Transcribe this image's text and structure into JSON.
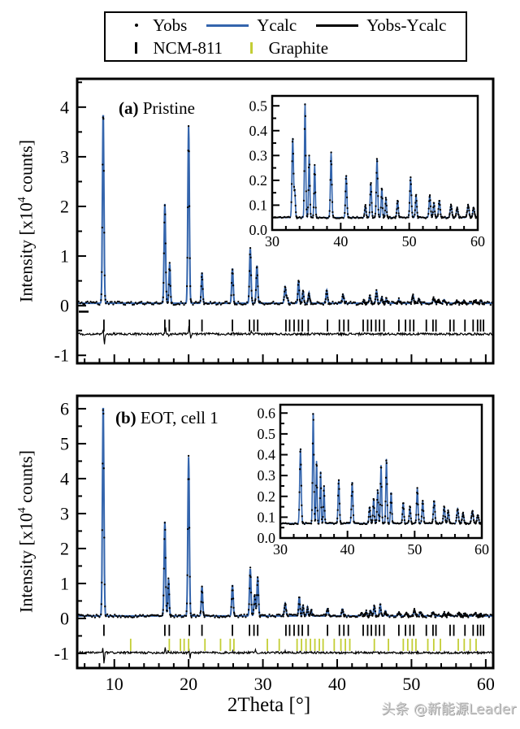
{
  "watermark": {
    "text": "头条 @新能源Leader"
  },
  "axis": {
    "xlabel": "2Theta [°]",
    "ylabel_pre": "Intensity [x10",
    "ylabel_sup": "4",
    "ylabel_post": " counts]"
  },
  "colors": {
    "ycalc_blue": "#3465ad",
    "graphite_tick": "#c3ce35",
    "obs_black": "#000000",
    "watermark_gray": "#d0d0d0"
  },
  "legend": {
    "row1": [
      {
        "glyph": "yobs-dot",
        "label": "Yobs"
      },
      {
        "glyph": "ycalc-blue-line",
        "label": "Ycalc"
      },
      {
        "glyph": "diff-black-line",
        "label": "Yobs-Ycalc"
      }
    ],
    "row2": [
      {
        "glyph": "ncm811-black-tick",
        "label": "NCM-811"
      },
      {
        "glyph": "graphite-yellow-tick",
        "label": "Graphite"
      }
    ]
  },
  "chart_data": [
    {
      "id": "panel-a",
      "type": "line",
      "title_prefix": "(a)",
      "title": "Pristine",
      "xlabel": "2Theta [°]",
      "ylabel": "Intensity [x10^4 counts]",
      "xlim": [
        5,
        61
      ],
      "ylim": [
        -1.16,
        4.57
      ],
      "xticks": [
        10,
        20,
        30,
        40,
        50,
        60
      ],
      "xminor": 2,
      "yticks": [
        -1,
        0,
        1,
        2,
        3,
        4
      ],
      "ytick_labels": [
        "-1",
        "0",
        "1",
        "2",
        "3",
        "4"
      ],
      "yminor": 0.5,
      "show_xtick_labels": false,
      "baseline": 0.05,
      "start_dash": -0.12,
      "peaks": [
        [
          8.5,
          3.85,
          0.1
        ],
        [
          16.8,
          2.0,
          0.1
        ],
        [
          17.45,
          0.8,
          0.09
        ],
        [
          20.0,
          3.58,
          0.1
        ],
        [
          21.8,
          0.62,
          0.09
        ],
        [
          25.9,
          0.7,
          0.1
        ],
        [
          28.3,
          1.1,
          0.1
        ],
        [
          29.2,
          0.76,
          0.1
        ],
        [
          33.0,
          0.32,
          0.11
        ],
        [
          33.3,
          0.1,
          0.09
        ],
        [
          34.8,
          0.46,
          0.09
        ],
        [
          35.4,
          0.25,
          0.09
        ],
        [
          36.2,
          0.21,
          0.09
        ],
        [
          38.6,
          0.26,
          0.1
        ],
        [
          40.8,
          0.17,
          0.1
        ],
        [
          43.6,
          0.05,
          0.1
        ],
        [
          44.4,
          0.14,
          0.1
        ],
        [
          45.3,
          0.24,
          0.1
        ],
        [
          46.0,
          0.12,
          0.09
        ],
        [
          46.6,
          0.08,
          0.09
        ],
        [
          48.3,
          0.07,
          0.1
        ],
        [
          50.2,
          0.16,
          0.11
        ],
        [
          51.0,
          0.09,
          0.1
        ],
        [
          53.0,
          0.09,
          0.11
        ],
        [
          53.6,
          0.06,
          0.1
        ],
        [
          54.4,
          0.07,
          0.11
        ],
        [
          56.1,
          0.05,
          0.12
        ],
        [
          57.0,
          0.04,
          0.12
        ],
        [
          58.6,
          0.05,
          0.13
        ],
        [
          59.4,
          0.04,
          0.12
        ]
      ],
      "ncm811_ticks": [
        8.6,
        16.8,
        17.4,
        20.1,
        21.8,
        25.9,
        28.2,
        28.8,
        29.3,
        33.1,
        33.6,
        34.2,
        34.8,
        35.3,
        36.1,
        38.7,
        40.3,
        40.9,
        41.5,
        43.5,
        44.1,
        44.6,
        45.2,
        45.7,
        46.3,
        48.3,
        49.2,
        49.8,
        50.3,
        52.0,
        52.9,
        53.3,
        55.2,
        55.7,
        57.2,
        58.3,
        58.9,
        59.3,
        59.7
      ],
      "ncm811_band": [
        -0.28,
        -0.52
      ],
      "diff_y": -0.57,
      "diff_noise": 0.004,
      "diff_spikes": [
        [
          8.52,
          0.1,
          0.05
        ],
        [
          8.66,
          -0.24,
          0.06
        ],
        [
          16.9,
          0.14,
          0.05
        ],
        [
          17.35,
          -0.05,
          0.05
        ],
        [
          20.05,
          0.16,
          0.05
        ],
        [
          20.3,
          -0.09,
          0.05
        ],
        [
          25.95,
          0.04,
          0.05
        ],
        [
          28.4,
          0.05,
          0.06
        ]
      ]
    },
    {
      "id": "inset-a",
      "type": "line",
      "xlim": [
        30,
        60
      ],
      "ylim": [
        0,
        0.54
      ],
      "xticks": [
        30,
        40,
        50,
        60
      ],
      "xminor": 2,
      "yticks": [
        0,
        0.1,
        0.2,
        0.3,
        0.4,
        0.5
      ],
      "ytick_labels": [
        "0.0",
        "0.1",
        "0.2",
        "0.3",
        "0.4",
        "0.5"
      ],
      "yminor": 0.05,
      "show_xtick_labels": true,
      "baseline": 0.05,
      "peaks": [
        [
          33.0,
          0.32,
          0.11
        ],
        [
          33.3,
          0.1,
          0.09
        ],
        [
          34.8,
          0.46,
          0.09
        ],
        [
          35.4,
          0.25,
          0.09
        ],
        [
          36.2,
          0.21,
          0.09
        ],
        [
          38.6,
          0.26,
          0.1
        ],
        [
          40.8,
          0.17,
          0.1
        ],
        [
          43.6,
          0.05,
          0.1
        ],
        [
          44.4,
          0.14,
          0.1
        ],
        [
          45.3,
          0.24,
          0.1
        ],
        [
          46.0,
          0.12,
          0.09
        ],
        [
          46.6,
          0.08,
          0.09
        ],
        [
          48.3,
          0.07,
          0.1
        ],
        [
          50.2,
          0.16,
          0.11
        ],
        [
          51.0,
          0.09,
          0.1
        ],
        [
          53.0,
          0.09,
          0.11
        ],
        [
          53.6,
          0.06,
          0.1
        ],
        [
          54.4,
          0.07,
          0.11
        ],
        [
          56.1,
          0.05,
          0.12
        ],
        [
          57.0,
          0.04,
          0.12
        ],
        [
          58.6,
          0.05,
          0.13
        ],
        [
          59.4,
          0.04,
          0.12
        ]
      ]
    },
    {
      "id": "panel-b",
      "type": "line",
      "title_prefix": "(b)",
      "title": "EOT, cell 1",
      "xlabel": "2Theta [°]",
      "ylabel": "Intensity [x10^4 counts]",
      "xlim": [
        5,
        61
      ],
      "ylim": [
        -1.42,
        6.37
      ],
      "xticks": [
        10,
        20,
        30,
        40,
        50,
        60
      ],
      "xtick_labels": [
        "10",
        "20",
        "30",
        "40",
        "50",
        "60"
      ],
      "xminor": 2,
      "yticks": [
        -1,
        0,
        1,
        2,
        3,
        4,
        5,
        6
      ],
      "ytick_labels": [
        "-1",
        "0",
        "1",
        "2",
        "3",
        "4",
        "5",
        "6"
      ],
      "yminor": 0.5,
      "show_xtick_labels": true,
      "baseline": 0.07,
      "peaks": [
        [
          8.5,
          6.05,
          0.1
        ],
        [
          16.8,
          2.7,
          0.1
        ],
        [
          17.3,
          1.05,
          0.09
        ],
        [
          20.0,
          4.55,
          0.1
        ],
        [
          21.8,
          0.85,
          0.09
        ],
        [
          25.9,
          0.88,
          0.1
        ],
        [
          28.3,
          1.35,
          0.1
        ],
        [
          28.9,
          0.6,
          0.1
        ],
        [
          29.3,
          1.1,
          0.1
        ],
        [
          33.0,
          0.36,
          0.11
        ],
        [
          34.9,
          0.54,
          0.09
        ],
        [
          35.4,
          0.3,
          0.08
        ],
        [
          36.0,
          0.25,
          0.08
        ],
        [
          36.5,
          0.18,
          0.08
        ],
        [
          38.7,
          0.21,
          0.1
        ],
        [
          40.7,
          0.2,
          0.1
        ],
        [
          43.3,
          0.08,
          0.1
        ],
        [
          43.9,
          0.12,
          0.09
        ],
        [
          44.5,
          0.16,
          0.09
        ],
        [
          45.0,
          0.28,
          0.09
        ],
        [
          45.8,
          0.31,
          0.09
        ],
        [
          46.5,
          0.15,
          0.09
        ],
        [
          48.3,
          0.1,
          0.1
        ],
        [
          49.3,
          0.08,
          0.1
        ],
        [
          50.4,
          0.17,
          0.1
        ],
        [
          51.2,
          0.11,
          0.1
        ],
        [
          52.9,
          0.11,
          0.11
        ],
        [
          54.4,
          0.08,
          0.11
        ],
        [
          55.0,
          0.06,
          0.1
        ],
        [
          56.4,
          0.07,
          0.12
        ],
        [
          57.2,
          0.05,
          0.12
        ],
        [
          58.6,
          0.06,
          0.13
        ],
        [
          59.4,
          0.04,
          0.12
        ]
      ],
      "ncm811_ticks": [
        8.6,
        16.8,
        17.4,
        20.1,
        21.8,
        25.9,
        28.2,
        28.8,
        29.3,
        33.1,
        33.6,
        34.2,
        34.8,
        35.3,
        36.1,
        38.7,
        40.3,
        40.9,
        41.5,
        43.5,
        44.1,
        44.6,
        45.2,
        45.7,
        46.3,
        48.3,
        49.2,
        49.8,
        50.3,
        52.0,
        52.9,
        53.3,
        55.2,
        55.7,
        57.2,
        58.3,
        58.9,
        59.3,
        59.7
      ],
      "ncm811_band": [
        -0.18,
        -0.5
      ],
      "graphite_ticks": [
        12.2,
        17.4,
        18.9,
        19.4,
        20.0,
        22.2,
        24.3,
        25.6,
        26.1,
        30.6,
        32.2,
        34.6,
        35.2,
        35.8,
        36.4,
        37.0,
        37.6,
        38.1,
        39.6,
        40.5,
        41.1,
        41.7,
        45.0,
        46.9,
        48.9,
        49.5,
        50.1,
        50.6,
        52.2,
        53.0,
        53.9,
        56.3,
        57.1,
        57.9,
        58.7
      ],
      "graphite_band": [
        -0.58,
        -0.93
      ],
      "diff_y": -0.98,
      "diff_noise": 0.004,
      "diff_spikes": [
        [
          8.45,
          0.12,
          0.05
        ],
        [
          8.62,
          -0.3,
          0.06
        ],
        [
          16.85,
          0.14,
          0.05
        ],
        [
          17.25,
          0.07,
          0.04
        ],
        [
          20.05,
          0.12,
          0.04
        ],
        [
          20.2,
          -0.16,
          0.05
        ],
        [
          25.95,
          0.06,
          0.05
        ],
        [
          29.0,
          0.07,
          0.05
        ],
        [
          33.0,
          0.05,
          0.06
        ],
        [
          35.0,
          0.05,
          0.05
        ]
      ]
    },
    {
      "id": "inset-b",
      "type": "line",
      "xlim": [
        30,
        60
      ],
      "ylim": [
        0,
        0.64
      ],
      "xticks": [
        30,
        40,
        50,
        60
      ],
      "xminor": 2,
      "yticks": [
        0,
        0.1,
        0.2,
        0.3,
        0.4,
        0.5,
        0.6
      ],
      "ytick_labels": [
        "0.0",
        "0.1",
        "0.2",
        "0.3",
        "0.4",
        "0.5",
        "0.6"
      ],
      "yminor": 0.05,
      "show_xtick_labels": true,
      "baseline": 0.07,
      "peaks": [
        [
          33.0,
          0.36,
          0.11
        ],
        [
          34.9,
          0.54,
          0.09
        ],
        [
          35.4,
          0.3,
          0.08
        ],
        [
          36.0,
          0.25,
          0.08
        ],
        [
          36.5,
          0.18,
          0.08
        ],
        [
          38.7,
          0.21,
          0.1
        ],
        [
          40.7,
          0.2,
          0.1
        ],
        [
          43.3,
          0.08,
          0.1
        ],
        [
          43.9,
          0.12,
          0.09
        ],
        [
          44.5,
          0.16,
          0.09
        ],
        [
          45.0,
          0.28,
          0.09
        ],
        [
          45.8,
          0.31,
          0.09
        ],
        [
          46.5,
          0.15,
          0.09
        ],
        [
          48.3,
          0.1,
          0.1
        ],
        [
          49.3,
          0.08,
          0.1
        ],
        [
          50.4,
          0.17,
          0.1
        ],
        [
          51.2,
          0.11,
          0.1
        ],
        [
          52.9,
          0.11,
          0.11
        ],
        [
          54.4,
          0.08,
          0.11
        ],
        [
          55.0,
          0.06,
          0.1
        ],
        [
          56.4,
          0.07,
          0.12
        ],
        [
          57.2,
          0.05,
          0.12
        ],
        [
          58.6,
          0.06,
          0.13
        ],
        [
          59.4,
          0.04,
          0.12
        ]
      ]
    }
  ]
}
